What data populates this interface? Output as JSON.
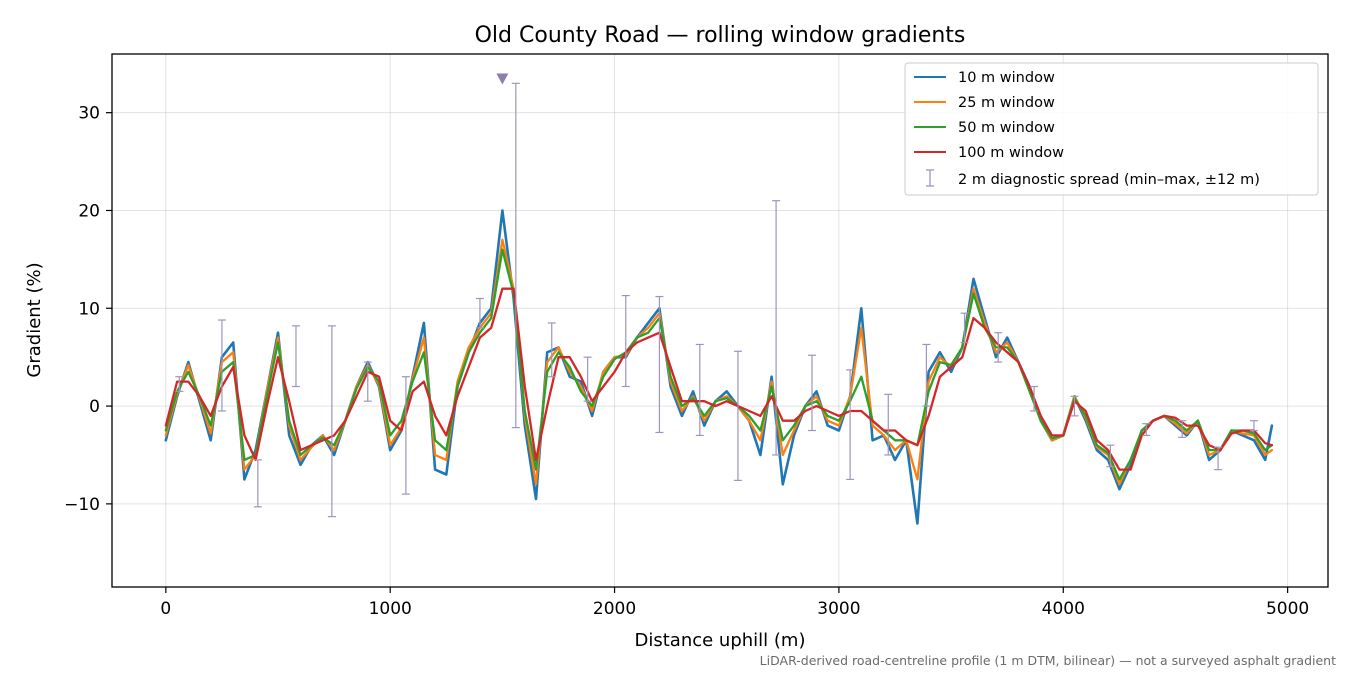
{
  "chart_data": {
    "type": "line",
    "title": "Old County Road — rolling window gradients",
    "xlabel": "Distance uphill (m)",
    "ylabel": "Gradient (%)",
    "xlim": [
      -240,
      5180
    ],
    "ylim": [
      -18.5,
      36
    ],
    "xticks": [
      0,
      1000,
      2000,
      3000,
      4000,
      5000
    ],
    "xtick_labels": [
      "0",
      "1000",
      "2000",
      "3000",
      "4000",
      "5000"
    ],
    "yticks": [
      -10,
      0,
      10,
      20,
      30
    ],
    "ytick_labels": [
      "−10",
      "0",
      "10",
      "20",
      "30"
    ],
    "grid": true,
    "legend_position": "top-right",
    "note": "LiDAR-derived road-centreline profile (1 m DTM, bilinear) — not a surveyed asphalt gradient",
    "marker": {
      "label": "",
      "x": 1500,
      "y": 33.5,
      "color": "#8c7fb0"
    },
    "x": [
      0,
      50,
      100,
      150,
      200,
      250,
      300,
      350,
      400,
      450,
      500,
      550,
      600,
      650,
      700,
      750,
      800,
      850,
      900,
      950,
      1000,
      1050,
      1100,
      1150,
      1200,
      1250,
      1300,
      1350,
      1400,
      1450,
      1500,
      1550,
      1600,
      1650,
      1700,
      1750,
      1800,
      1850,
      1900,
      1950,
      2000,
      2050,
      2100,
      2150,
      2200,
      2250,
      2300,
      2350,
      2400,
      2450,
      2500,
      2550,
      2600,
      2650,
      2700,
      2750,
      2800,
      2850,
      2900,
      2950,
      3000,
      3050,
      3100,
      3150,
      3200,
      3250,
      3300,
      3350,
      3400,
      3450,
      3500,
      3550,
      3600,
      3650,
      3700,
      3750,
      3800,
      3850,
      3900,
      3950,
      4000,
      4050,
      4100,
      4150,
      4200,
      4250,
      4300,
      4350,
      4400,
      4450,
      4500,
      4550,
      4600,
      4650,
      4700,
      4750,
      4800,
      4850,
      4900,
      4930
    ],
    "series": [
      {
        "name": "10 m window",
        "color": "#1f77b4",
        "width": 2.6,
        "values": [
          -3.5,
          1.0,
          4.5,
          0.5,
          -3.5,
          5.0,
          6.5,
          -7.5,
          -4.5,
          1.5,
          7.5,
          -3.0,
          -6.0,
          -4.0,
          -3.0,
          -5.0,
          -1.5,
          2.0,
          4.5,
          2.0,
          -4.5,
          -2.5,
          3.0,
          8.5,
          -6.5,
          -7.0,
          2.0,
          5.5,
          8.5,
          10.0,
          20.0,
          11.0,
          -2.0,
          -9.5,
          5.5,
          6.0,
          3.0,
          2.5,
          -1.0,
          3.5,
          5.0,
          5.0,
          7.0,
          8.5,
          10.0,
          2.0,
          -1.0,
          1.5,
          -2.0,
          0.5,
          1.5,
          0.0,
          -1.5,
          -5.0,
          3.0,
          -8.0,
          -3.0,
          0.0,
          1.5,
          -2.0,
          -2.5,
          1.0,
          10.0,
          -3.5,
          -3.0,
          -5.5,
          -3.5,
          -12.0,
          3.5,
          5.5,
          3.5,
          6.0,
          13.0,
          9.0,
          5.0,
          7.0,
          4.5,
          2.0,
          -1.5,
          -3.5,
          -3.0,
          1.0,
          -1.5,
          -4.5,
          -5.5,
          -8.5,
          -6.0,
          -2.5,
          -1.5,
          -1.0,
          -2.0,
          -3.0,
          -1.5,
          -5.5,
          -4.5,
          -2.5,
          -3.0,
          -3.5,
          -5.5,
          -2.0
        ]
      },
      {
        "name": "25 m window",
        "color": "#ff7f0e",
        "width": 2.3,
        "values": [
          -3.0,
          1.2,
          4.2,
          0.8,
          -2.8,
          4.5,
          5.5,
          -6.5,
          -5.0,
          1.5,
          7.0,
          -2.0,
          -5.5,
          -4.2,
          -3.0,
          -4.5,
          -1.5,
          2.0,
          4.2,
          2.2,
          -4.0,
          -2.2,
          2.8,
          7.0,
          -5.0,
          -5.5,
          2.5,
          6.0,
          8.0,
          9.5,
          17.0,
          12.0,
          -1.0,
          -8.0,
          4.5,
          6.0,
          3.5,
          2.0,
          -0.5,
          3.5,
          5.0,
          5.2,
          7.0,
          8.0,
          9.5,
          2.5,
          -0.5,
          1.0,
          -1.5,
          0.5,
          1.0,
          0.0,
          -1.5,
          -3.5,
          2.5,
          -5.0,
          -2.5,
          0.0,
          1.0,
          -1.5,
          -2.0,
          1.0,
          8.0,
          -2.0,
          -3.0,
          -4.5,
          -3.5,
          -7.5,
          2.5,
          5.0,
          4.0,
          6.0,
          12.0,
          8.5,
          5.5,
          6.5,
          4.5,
          1.5,
          -1.5,
          -3.5,
          -3.0,
          1.0,
          -1.2,
          -4.2,
          -5.0,
          -8.0,
          -5.5,
          -2.5,
          -1.5,
          -1.0,
          -1.8,
          -2.8,
          -1.5,
          -5.0,
          -4.5,
          -2.5,
          -2.8,
          -3.0,
          -5.0,
          -4.5
        ]
      },
      {
        "name": "50 m window",
        "color": "#2ca02c",
        "width": 2.3,
        "values": [
          -2.5,
          1.5,
          3.5,
          1.0,
          -2.0,
          3.5,
          4.5,
          -5.5,
          -5.0,
          1.0,
          6.5,
          -1.5,
          -5.0,
          -4.0,
          -3.2,
          -4.0,
          -1.5,
          1.8,
          4.0,
          2.5,
          -3.0,
          -1.5,
          2.5,
          5.5,
          -3.5,
          -4.5,
          2.0,
          5.5,
          7.5,
          9.0,
          16.0,
          11.5,
          -0.5,
          -6.5,
          3.5,
          5.5,
          4.0,
          1.5,
          0.0,
          3.0,
          4.8,
          5.5,
          7.0,
          7.5,
          9.0,
          3.0,
          0.0,
          0.8,
          -1.0,
          0.5,
          0.8,
          0.0,
          -1.0,
          -2.5,
          2.0,
          -3.5,
          -2.0,
          0.0,
          0.5,
          -1.0,
          -1.5,
          0.5,
          3.0,
          -1.5,
          -2.5,
          -3.5,
          -3.5,
          -4.0,
          1.5,
          4.5,
          4.2,
          6.0,
          11.5,
          8.0,
          6.0,
          6.0,
          4.5,
          1.5,
          -1.5,
          -3.3,
          -3.0,
          0.8,
          -1.0,
          -4.0,
          -4.8,
          -7.5,
          -5.5,
          -2.5,
          -1.5,
          -1.0,
          -1.5,
          -2.5,
          -1.5,
          -4.5,
          -4.5,
          -2.5,
          -2.5,
          -2.8,
          -4.5,
          -4.0
        ]
      },
      {
        "name": "100 m window",
        "color": "#d62728",
        "width": 2.3,
        "values": [
          -2.0,
          2.5,
          2.5,
          1.0,
          -1.0,
          2.0,
          4.0,
          -3.0,
          -5.5,
          0.0,
          5.0,
          0.5,
          -4.5,
          -4.0,
          -3.5,
          -3.0,
          -1.5,
          1.0,
          3.5,
          3.0,
          -1.5,
          -2.5,
          1.5,
          2.5,
          -1.0,
          -3.0,
          1.0,
          4.0,
          7.0,
          8.0,
          12.0,
          12.0,
          2.0,
          -5.5,
          0.0,
          5.0,
          5.0,
          3.0,
          0.5,
          2.0,
          3.5,
          5.5,
          6.5,
          7.0,
          7.5,
          4.0,
          0.5,
          0.5,
          0.5,
          0.0,
          0.5,
          0.0,
          -0.5,
          -1.0,
          1.0,
          -1.5,
          -1.5,
          -0.5,
          0.0,
          -0.5,
          -1.0,
          -0.5,
          -0.5,
          -1.5,
          -2.5,
          -2.5,
          -3.5,
          -4.0,
          -1.0,
          3.0,
          4.0,
          5.0,
          9.0,
          8.0,
          6.5,
          5.5,
          4.5,
          2.0,
          -1.0,
          -3.0,
          -3.0,
          0.5,
          -0.5,
          -3.5,
          -4.5,
          -6.5,
          -6.5,
          -3.0,
          -1.5,
          -1.0,
          -1.2,
          -2.0,
          -2.0,
          -4.0,
          -4.5,
          -2.8,
          -2.5,
          -2.5,
          -3.8,
          -4.0
        ]
      }
    ],
    "diagnostic": {
      "name": "2 m diagnostic spread (min–max, ±12 m)",
      "color": "#9f94bd",
      "points": [
        {
          "x": 60,
          "min": 1.5,
          "max": 3.0
        },
        {
          "x": 250,
          "min": -0.5,
          "max": 8.8
        },
        {
          "x": 410,
          "min": -10.3,
          "max": -5.5
        },
        {
          "x": 580,
          "min": 2.0,
          "max": 8.2
        },
        {
          "x": 740,
          "min": -11.3,
          "max": 8.2
        },
        {
          "x": 900,
          "min": 0.5,
          "max": 4.5
        },
        {
          "x": 1070,
          "min": -9.0,
          "max": 3.0
        },
        {
          "x": 1400,
          "min": 8.0,
          "max": 11.0
        },
        {
          "x": 1560,
          "min": -2.2,
          "max": 33.0
        },
        {
          "x": 1720,
          "min": 3.0,
          "max": 8.5
        },
        {
          "x": 1880,
          "min": 0.5,
          "max": 5.0
        },
        {
          "x": 2050,
          "min": 2.0,
          "max": 11.3
        },
        {
          "x": 2200,
          "min": -2.7,
          "max": 11.2
        },
        {
          "x": 2380,
          "min": -3.0,
          "max": 6.3
        },
        {
          "x": 2550,
          "min": -7.6,
          "max": 5.6
        },
        {
          "x": 2720,
          "min": -5.0,
          "max": 21.0
        },
        {
          "x": 2880,
          "min": -2.5,
          "max": 5.2
        },
        {
          "x": 3050,
          "min": -7.5,
          "max": 3.7
        },
        {
          "x": 3220,
          "min": -5.0,
          "max": 1.2
        },
        {
          "x": 3390,
          "min": 0.0,
          "max": 6.3
        },
        {
          "x": 3560,
          "min": 6.5,
          "max": 9.5
        },
        {
          "x": 3710,
          "min": 4.5,
          "max": 7.5
        },
        {
          "x": 3870,
          "min": -0.5,
          "max": 2.0
        },
        {
          "x": 4050,
          "min": -1.0,
          "max": 1.0
        },
        {
          "x": 4210,
          "min": -6.2,
          "max": -4.0
        },
        {
          "x": 4370,
          "min": -3.0,
          "max": -1.8
        },
        {
          "x": 4530,
          "min": -3.2,
          "max": -1.5
        },
        {
          "x": 4690,
          "min": -6.5,
          "max": -4.2
        },
        {
          "x": 4850,
          "min": -2.5,
          "max": -1.5
        }
      ]
    }
  }
}
